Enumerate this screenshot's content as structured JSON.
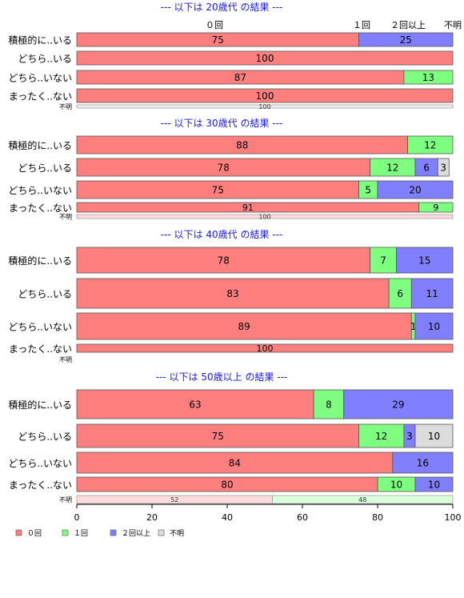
{
  "chart_data": {
    "type": "bar",
    "stacked": true,
    "orientation": "horizontal",
    "colors": {
      "0回": "#ff7f7f",
      "1回": "#7fff7f",
      "2回以上": "#7f7fff",
      "不明": "#dcdcdc"
    },
    "top_legend": [
      "０回",
      "１回",
      "２回以上",
      "不明"
    ],
    "legend": {
      "placement": "bottom-left",
      "items": [
        {
          "name": "０回",
          "color": "#ff7f7f"
        },
        {
          "name": "１回",
          "color": "#7fff7f"
        },
        {
          "name": "２回以上",
          "color": "#7f7fff"
        },
        {
          "name": "不明",
          "color": "#dcdcdc"
        }
      ]
    },
    "xlim": [
      0,
      100
    ],
    "xticks": [
      0,
      20,
      40,
      60,
      80,
      100
    ],
    "panels": [
      {
        "title": "--- 以下は 20歳代 の結果 ---",
        "rows": [
          {
            "label": "積極的に..いる",
            "values": [
              75,
              0,
              25,
              0
            ]
          },
          {
            "label": "どちら..いる",
            "values": [
              100,
              0,
              0,
              0
            ]
          },
          {
            "label": "どちら..いない",
            "values": [
              87,
              13,
              0,
              0
            ]
          },
          {
            "label": "まったく..ない",
            "values": [
              100,
              0,
              0,
              0
            ]
          }
        ],
        "unknown": {
          "label": "不明",
          "values": [
            0,
            0,
            0,
            100
          ]
        }
      },
      {
        "title": "--- 以下は 30歳代 の結果 ---",
        "rows": [
          {
            "label": "積極的に..いる",
            "values": [
              88,
              12,
              0,
              0
            ]
          },
          {
            "label": "どちら..いる",
            "values": [
              78,
              12,
              6,
              3
            ]
          },
          {
            "label": "どちら..いない",
            "values": [
              75,
              5,
              20,
              0
            ]
          },
          {
            "label": "まったく..ない",
            "values": [
              91,
              9,
              0,
              0
            ]
          }
        ],
        "unknown": {
          "label": "不明",
          "values": [
            100,
            0,
            0,
            0
          ]
        }
      },
      {
        "title": "--- 以下は 40歳代 の結果 ---",
        "rows": [
          {
            "label": "積極的に..いる",
            "values": [
              78,
              7,
              15,
              0
            ]
          },
          {
            "label": "どちら..いる",
            "values": [
              83,
              6,
              11,
              0
            ]
          },
          {
            "label": "どちら..いない",
            "values": [
              89,
              1,
              10,
              0
            ]
          },
          {
            "label": "まったく..ない",
            "values": [
              100,
              0,
              0,
              0
            ]
          }
        ],
        "unknown": {
          "label": "不明",
          "values": [
            0,
            0,
            0,
            0
          ]
        }
      },
      {
        "title": "--- 以下は 50歳以上 の結果 ---",
        "rows": [
          {
            "label": "積極的に..いる",
            "values": [
              63,
              8,
              29,
              0
            ]
          },
          {
            "label": "どちら..いる",
            "values": [
              75,
              12,
              3,
              10
            ]
          },
          {
            "label": "どちら..いない",
            "values": [
              84,
              0,
              16,
              0
            ]
          },
          {
            "label": "まったく..ない",
            "values": [
              80,
              10,
              10,
              0
            ]
          }
        ],
        "unknown": {
          "label": "不明",
          "values": [
            52,
            48,
            0,
            0
          ]
        }
      }
    ]
  }
}
